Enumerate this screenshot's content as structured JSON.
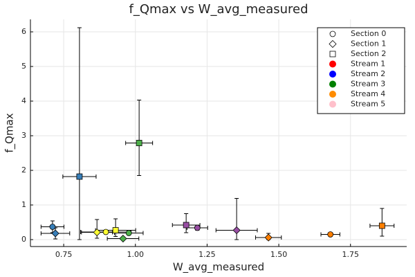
{
  "chart_data": {
    "type": "scatter",
    "title": "f_Qmax vs W_avg_measured",
    "x_label": "W_avg_measured",
    "y_label": "f_Qmax",
    "x": [
      0.711,
      0.721,
      0.805,
      0.866,
      0.897,
      0.931,
      0.957,
      0.977,
      1.013,
      1.177,
      1.216,
      1.353,
      1.464,
      1.68,
      1.86
    ],
    "y": [
      0.37,
      0.18,
      1.82,
      0.21,
      0.22,
      0.27,
      0.03,
      0.19,
      2.79,
      0.42,
      0.34,
      0.27,
      0.06,
      0.15,
      0.4
    ],
    "xerr": [
      0.04,
      0.05,
      0.058,
      0.054,
      0.088,
      0.07,
      0.055,
      0.05,
      0.047,
      0.048,
      0.036,
      0.072,
      0.045,
      0.033,
      0.042
    ],
    "yerr_low": [
      0.17,
      0.16,
      1.82,
      0.17,
      0.02,
      0.18,
      0.02,
      0.02,
      0.94,
      0.22,
      0.07,
      0.27,
      0.06,
      0.02,
      0.3
    ],
    "yerr_high": [
      0.17,
      0.16,
      4.3,
      0.37,
      0.02,
      0.33,
      0.02,
      0.02,
      1.24,
      0.33,
      0.08,
      0.92,
      0.12,
      0.02,
      0.5
    ],
    "markers": [
      "circle",
      "diamond",
      "square",
      "diamond",
      "circle",
      "square",
      "diamond",
      "circle",
      "square",
      "square",
      "circle",
      "diamond",
      "diamond",
      "circle",
      "square"
    ],
    "colors": [
      "#377eb8",
      "#377eb8",
      "#377eb8",
      "#ffff33",
      "#ffff33",
      "#ffff33",
      "#4daf4a",
      "#4daf4a",
      "#4daf4a",
      "#984ea3",
      "#984ea3",
      "#984ea3",
      "#ff7f00",
      "#ff7f00",
      "#ff7f00"
    ],
    "legend": [
      {
        "name": "Section 0",
        "marker": "circle",
        "color": "#ffffff"
      },
      {
        "name": "Section 1",
        "marker": "diamond",
        "color": "#ffffff"
      },
      {
        "name": "Section 2",
        "marker": "square",
        "color": "#ffffff"
      },
      {
        "name": "Stream 1",
        "marker": "dot",
        "color": "#ff0000"
      },
      {
        "name": "Stream 2",
        "marker": "dot",
        "color": "#0000ff"
      },
      {
        "name": "Stream 3",
        "marker": "dot",
        "color": "#008000"
      },
      {
        "name": "Stream 4",
        "marker": "dot",
        "color": "#ff8c00"
      },
      {
        "name": "Stream 5",
        "marker": "dot",
        "color": "#ffc0cb"
      }
    ],
    "legend_position": "top-right",
    "xlim": [
      0.634,
      1.946
    ],
    "ylim": [
      -0.2,
      6.36
    ],
    "xticks": [
      0.75,
      {
        "value": 1,
        "label": "1.00"
      },
      1.25,
      {
        "value": 1.5,
        "label": "1.50"
      },
      1.75
    ],
    "yticks": [
      0,
      1,
      2,
      3,
      4,
      5,
      6
    ],
    "grid": true
  }
}
